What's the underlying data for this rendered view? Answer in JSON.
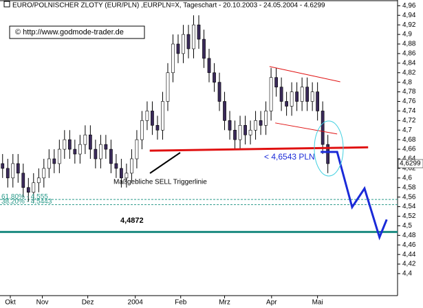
{
  "chart_data": {
    "type": "candlestick",
    "title": "EURO/POLNISCHER ZLOTY (EUR/PLN) ,EURPLN=X, Tageschart - 20.10.2003 - 24.05.2004 - 4.6299",
    "source": "© http://www.godmode-trader.de",
    "x": [
      0,
      1,
      2,
      3,
      4,
      5,
      6,
      7,
      8,
      9,
      10,
      11,
      12,
      13,
      14,
      15,
      16,
      17,
      18,
      19,
      20,
      21,
      22,
      23,
      24,
      25,
      26,
      27,
      28,
      29,
      30,
      31,
      32,
      33,
      34,
      35,
      36,
      37,
      38,
      39,
      40,
      41,
      42,
      43,
      44,
      45,
      46,
      47,
      48,
      49,
      50,
      51,
      52,
      53,
      54,
      55,
      56,
      57,
      58,
      59,
      60,
      61,
      62,
      63
    ],
    "open": [
      4.63,
      4.62,
      4.6,
      4.63,
      4.61,
      4.58,
      4.57,
      4.59,
      4.6,
      4.62,
      4.64,
      4.63,
      4.66,
      4.68,
      4.66,
      4.65,
      4.67,
      4.69,
      4.66,
      4.64,
      4.67,
      4.66,
      4.63,
      4.62,
      4.6,
      4.61,
      4.64,
      4.68,
      4.72,
      4.74,
      4.71,
      4.7,
      4.76,
      4.82,
      4.88,
      4.86,
      4.9,
      4.87,
      4.92,
      4.89,
      4.85,
      4.82,
      4.8,
      4.76,
      4.72,
      4.7,
      4.68,
      4.71,
      4.69,
      4.7,
      4.72,
      4.71,
      4.74,
      4.81,
      4.79,
      4.76,
      4.75,
      4.78,
      4.76,
      4.79,
      4.76,
      4.78,
      4.74,
      4.67
    ],
    "high": [
      4.65,
      4.64,
      4.65,
      4.65,
      4.63,
      4.6,
      4.61,
      4.62,
      4.64,
      4.66,
      4.66,
      4.68,
      4.7,
      4.7,
      4.68,
      4.69,
      4.71,
      4.71,
      4.68,
      4.69,
      4.69,
      4.68,
      4.65,
      4.64,
      4.63,
      4.66,
      4.7,
      4.74,
      4.76,
      4.76,
      4.73,
      4.78,
      4.84,
      4.9,
      4.9,
      4.92,
      4.92,
      4.94,
      4.94,
      4.91,
      4.87,
      4.84,
      4.82,
      4.78,
      4.74,
      4.72,
      4.73,
      4.73,
      4.72,
      4.74,
      4.74,
      4.76,
      4.83,
      4.83,
      4.81,
      4.78,
      4.8,
      4.8,
      4.81,
      4.81,
      4.8,
      4.8,
      4.76,
      4.69
    ],
    "low": [
      4.6,
      4.58,
      4.58,
      4.59,
      4.56,
      4.55,
      4.55,
      4.57,
      4.58,
      4.6,
      4.61,
      4.61,
      4.64,
      4.64,
      4.63,
      4.63,
      4.65,
      4.64,
      4.62,
      4.62,
      4.64,
      4.61,
      4.6,
      4.58,
      4.58,
      4.59,
      4.62,
      4.66,
      4.7,
      4.69,
      4.68,
      4.68,
      4.74,
      4.8,
      4.84,
      4.84,
      4.85,
      4.85,
      4.87,
      4.83,
      4.8,
      4.78,
      4.74,
      4.7,
      4.68,
      4.66,
      4.66,
      4.67,
      4.67,
      4.68,
      4.69,
      4.69,
      4.72,
      4.77,
      4.74,
      4.73,
      4.73,
      4.74,
      4.74,
      4.74,
      4.74,
      4.72,
      4.65,
      4.61
    ],
    "close": [
      4.62,
      4.6,
      4.63,
      4.61,
      4.58,
      4.57,
      4.59,
      4.6,
      4.62,
      4.64,
      4.63,
      4.66,
      4.68,
      4.66,
      4.65,
      4.67,
      4.69,
      4.66,
      4.64,
      4.67,
      4.66,
      4.63,
      4.62,
      4.6,
      4.61,
      4.64,
      4.68,
      4.72,
      4.74,
      4.71,
      4.7,
      4.76,
      4.82,
      4.88,
      4.86,
      4.9,
      4.87,
      4.92,
      4.89,
      4.85,
      4.82,
      4.8,
      4.76,
      4.72,
      4.7,
      4.68,
      4.71,
      4.69,
      4.7,
      4.72,
      4.71,
      4.74,
      4.81,
      4.79,
      4.76,
      4.75,
      4.78,
      4.76,
      4.79,
      4.76,
      4.78,
      4.74,
      4.67,
      4.6299
    ],
    "up_color": "#ffffff",
    "down_color": "#3a2a5a",
    "xlim": [
      -0.5,
      76.5
    ],
    "xticks": [
      {
        "value": 1.5,
        "label": "Okt"
      },
      {
        "value": 7.7,
        "label": "Nov"
      },
      {
        "value": 16.5,
        "label": "Dez"
      },
      {
        "value": 25.7,
        "label": "2004"
      },
      {
        "value": 34.5,
        "label": "Feb"
      },
      {
        "value": 43,
        "label": "Mrz"
      },
      {
        "value": 52.1,
        "label": "Apr"
      },
      {
        "value": 61,
        "label": "Mai"
      }
    ],
    "ylim": [
      4.354,
      4.972
    ],
    "yticks": [
      {
        "value": 4.96,
        "label": "4,96"
      },
      {
        "value": 4.94,
        "label": "4,94"
      },
      {
        "value": 4.92,
        "label": "4,92"
      },
      {
        "value": 4.9,
        "label": "4,9"
      },
      {
        "value": 4.88,
        "label": "4,88"
      },
      {
        "value": 4.86,
        "label": "4,86"
      },
      {
        "value": 4.84,
        "label": "4,84"
      },
      {
        "value": 4.82,
        "label": "4,82"
      },
      {
        "value": 4.8,
        "label": "4,8"
      },
      {
        "value": 4.78,
        "label": "4,78"
      },
      {
        "value": 4.76,
        "label": "4,76"
      },
      {
        "value": 4.74,
        "label": "4,74"
      },
      {
        "value": 4.72,
        "label": "4,72"
      },
      {
        "value": 4.7,
        "label": "4,7"
      },
      {
        "value": 4.68,
        "label": "4,68"
      },
      {
        "value": 4.66,
        "label": "4,66"
      },
      {
        "value": 4.64,
        "label": "4,64"
      },
      {
        "value": 4.62,
        "label": "4,62"
      },
      {
        "value": 4.6,
        "label": "4,6"
      },
      {
        "value": 4.58,
        "label": "4,58"
      },
      {
        "value": 4.56,
        "label": "4,56"
      },
      {
        "value": 4.54,
        "label": "4,54"
      },
      {
        "value": 4.52,
        "label": "4,52"
      },
      {
        "value": 4.5,
        "label": "4,5"
      },
      {
        "value": 4.48,
        "label": "4,48"
      },
      {
        "value": 4.46,
        "label": "4,46"
      },
      {
        "value": 4.44,
        "label": "4,44"
      },
      {
        "value": 4.42,
        "label": "4,42"
      },
      {
        "value": 4.4,
        "label": "4,4"
      }
    ],
    "last_price": {
      "value": 4.6299,
      "label": "4,6299"
    },
    "levels": [
      {
        "value": 4.555,
        "label": "61.80% - 4.555",
        "color": "#2a9a8a",
        "dashed": true
      },
      {
        "value": 4.5443,
        "label": "38.20% - 4.5443",
        "color": "#2a9a8a",
        "dashed": true
      },
      {
        "value": 4.4872,
        "label": "4,4872",
        "color": "#1a8a80",
        "dashed": false
      }
    ],
    "trendlines": [
      {
        "x": [
          28.5,
          70.8
        ],
        "y": [
          4.657,
          4.664
        ],
        "color": "#e01010",
        "width": 3
      },
      {
        "x": [
          51.7,
          65.4
        ],
        "y": [
          4.833,
          4.801
        ],
        "color": "#e01010",
        "width": 1
      },
      {
        "x": [
          52.8,
          64.8
        ],
        "y": [
          4.715,
          4.692
        ],
        "color": "#e01010",
        "width": 1
      }
    ],
    "projection": {
      "x": [
        61.6,
        64.8,
        67.7,
        70.1,
        73.0,
        74.4
      ],
      "y": [
        4.6543,
        4.6543,
        4.539,
        4.578,
        4.476,
        4.513
      ],
      "color": "#1a2ad8"
    },
    "trigger_note": "Maßgebliche SELL Triggerlinie",
    "trigger_price": "< 4,6543 PLN"
  }
}
